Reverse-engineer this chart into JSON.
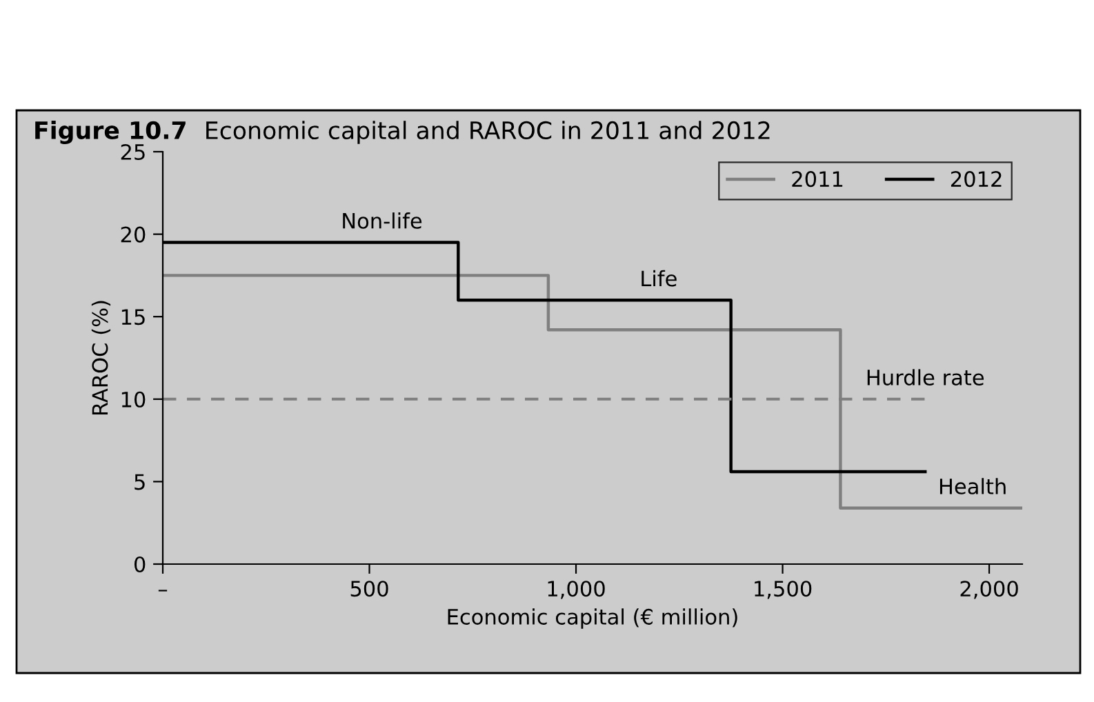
{
  "chart_data": {
    "type": "step",
    "title": "Figure 10.7  Economic capital and RAROC in 2011 and 2012",
    "xlabel": "Economic capital (€ million)",
    "ylabel": "RAROC (%)",
    "series": [
      {
        "name": "2011",
        "color": "#7f7f7f",
        "x": [
          0,
          933,
          1640,
          2080
        ],
        "values": [
          17.5,
          14.2,
          3.4,
          3.4
        ]
      },
      {
        "name": "2012",
        "color": "#000000",
        "x": [
          0,
          715,
          1375,
          1845
        ],
        "values": [
          19.5,
          16,
          5.6,
          5.6
        ]
      },
      {
        "type": "line",
        "color": "#7f7f7f",
        "line_style": "dashed",
        "x": [
          0,
          1845
        ],
        "values": [
          10,
          10
        ]
      }
    ],
    "annotations": [
      {
        "text": "Non-life",
        "x": 530,
        "y": 19.5
      },
      {
        "text": "Life",
        "x": 1200,
        "y": 16
      },
      {
        "text": "Hurdle rate",
        "x": 1845,
        "y": 10
      },
      {
        "text": "Health",
        "x": 1960,
        "y": 3.4
      }
    ],
    "xlim": [
      0,
      2080
    ],
    "xticks": [
      {
        "value": 0,
        "label": "–"
      },
      500,
      {
        "value": 1000,
        "label": "1,000"
      },
      {
        "value": 1500,
        "label": "1,500"
      },
      {
        "value": 2000,
        "label": "2,000"
      }
    ],
    "ylim": [
      0,
      25
    ],
    "yticks": [
      0,
      5,
      10,
      15,
      20,
      25
    ],
    "grid": false,
    "legend": "top right"
  }
}
